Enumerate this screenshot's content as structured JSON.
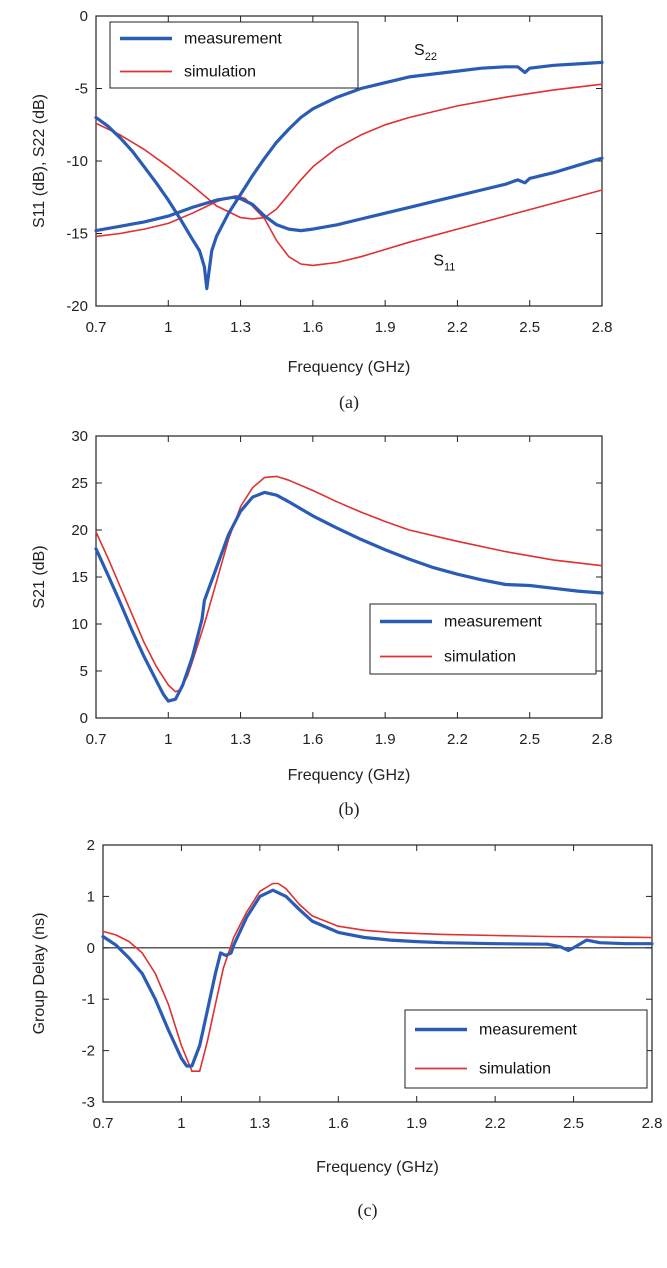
{
  "colors": {
    "measurement": "#2a5bb5",
    "simulation": "#e03030"
  },
  "chart_data": [
    {
      "type": "line",
      "caption": "(a)",
      "xlabel": "Frequency (GHz)",
      "ylabel": "S11 (dB), S22 (dB)",
      "xlim": [
        0.7,
        2.8
      ],
      "ylim": [
        -20,
        0
      ],
      "xticks": [
        "0.7",
        "1",
        "1.3",
        "1.6",
        "1.9",
        "2.2",
        "2.5",
        "2.8"
      ],
      "yticks": [
        "0",
        "-5",
        "-10",
        "-15",
        "-20"
      ],
      "legend": {
        "position": "top-left",
        "entries": [
          "measurement",
          "simulation"
        ]
      },
      "annotations": [
        {
          "text": "S",
          "sub": "22",
          "x": 2.02,
          "y": -2.7
        },
        {
          "text": "S",
          "sub": "11",
          "x": 2.1,
          "y": -17.2
        }
      ],
      "series": [
        {
          "name": "measurement",
          "curve": "S22",
          "color": "measurement",
          "x": [
            0.7,
            0.75,
            0.8,
            0.85,
            0.9,
            0.95,
            1.0,
            1.05,
            1.1,
            1.13,
            1.15,
            1.16,
            1.18,
            1.2,
            1.25,
            1.3,
            1.35,
            1.4,
            1.45,
            1.5,
            1.55,
            1.6,
            1.7,
            1.8,
            1.9,
            2.0,
            2.1,
            2.2,
            2.3,
            2.4,
            2.45,
            2.48,
            2.5,
            2.6,
            2.7,
            2.8
          ],
          "y": [
            -7.0,
            -7.6,
            -8.4,
            -9.3,
            -10.4,
            -11.5,
            -12.7,
            -14.0,
            -15.4,
            -16.2,
            -17.3,
            -18.8,
            -16.2,
            -15.2,
            -13.6,
            -12.3,
            -11.0,
            -9.8,
            -8.7,
            -7.8,
            -7.0,
            -6.4,
            -5.6,
            -5.0,
            -4.6,
            -4.2,
            -4.0,
            -3.8,
            -3.6,
            -3.5,
            -3.5,
            -3.9,
            -3.6,
            -3.4,
            -3.3,
            -3.2
          ]
        },
        {
          "name": "measurement",
          "curve": "S11",
          "color": "measurement",
          "x": [
            0.7,
            0.8,
            0.9,
            1.0,
            1.1,
            1.2,
            1.27,
            1.3,
            1.35,
            1.4,
            1.45,
            1.5,
            1.55,
            1.6,
            1.7,
            1.8,
            1.9,
            2.0,
            2.1,
            2.2,
            2.3,
            2.4,
            2.45,
            2.48,
            2.5,
            2.6,
            2.7,
            2.8
          ],
          "y": [
            -14.8,
            -14.5,
            -14.2,
            -13.8,
            -13.2,
            -12.7,
            -12.5,
            -12.6,
            -13.0,
            -13.8,
            -14.4,
            -14.7,
            -14.8,
            -14.7,
            -14.4,
            -14.0,
            -13.6,
            -13.2,
            -12.8,
            -12.4,
            -12.0,
            -11.6,
            -11.3,
            -11.5,
            -11.2,
            -10.8,
            -10.3,
            -9.8
          ]
        },
        {
          "name": "simulation",
          "curve": "S22",
          "color": "simulation",
          "x": [
            0.7,
            0.8,
            0.9,
            1.0,
            1.1,
            1.2,
            1.3,
            1.35,
            1.4,
            1.45,
            1.5,
            1.55,
            1.6,
            1.7,
            1.8,
            1.9,
            2.0,
            2.2,
            2.4,
            2.6,
            2.8
          ],
          "y": [
            -7.4,
            -8.2,
            -9.2,
            -10.4,
            -11.7,
            -13.1,
            -13.9,
            -14.0,
            -13.9,
            -13.3,
            -12.3,
            -11.3,
            -10.4,
            -9.1,
            -8.2,
            -7.5,
            -7.0,
            -6.2,
            -5.6,
            -5.1,
            -4.7
          ]
        },
        {
          "name": "simulation",
          "curve": "S11",
          "color": "simulation",
          "x": [
            0.7,
            0.8,
            0.9,
            1.0,
            1.1,
            1.2,
            1.28,
            1.32,
            1.4,
            1.45,
            1.5,
            1.55,
            1.6,
            1.7,
            1.8,
            1.9,
            2.0,
            2.2,
            2.4,
            2.6,
            2.8
          ],
          "y": [
            -15.2,
            -15.0,
            -14.7,
            -14.3,
            -13.6,
            -12.8,
            -12.4,
            -12.6,
            -14.0,
            -15.5,
            -16.6,
            -17.1,
            -17.2,
            -17.0,
            -16.6,
            -16.1,
            -15.6,
            -14.7,
            -13.8,
            -12.9,
            -12.0
          ]
        }
      ]
    },
    {
      "type": "line",
      "caption": "(b)",
      "xlabel": "Frequency (GHz)",
      "ylabel": "S21 (dB)",
      "xlim": [
        0.7,
        2.8
      ],
      "ylim": [
        0,
        30
      ],
      "xticks": [
        "0.7",
        "1",
        "1.3",
        "1.6",
        "1.9",
        "2.2",
        "2.5",
        "2.8"
      ],
      "yticks": [
        "0",
        "5",
        "10",
        "15",
        "20",
        "25",
        "30"
      ],
      "legend": {
        "position": "lower-right",
        "entries": [
          "measurement",
          "simulation"
        ]
      },
      "series": [
        {
          "name": "measurement",
          "color": "measurement",
          "x": [
            0.7,
            0.75,
            0.8,
            0.85,
            0.9,
            0.95,
            0.98,
            1.0,
            1.03,
            1.06,
            1.1,
            1.14,
            1.15,
            1.2,
            1.25,
            1.3,
            1.35,
            1.4,
            1.45,
            1.5,
            1.6,
            1.7,
            1.8,
            1.9,
            2.0,
            2.1,
            2.2,
            2.3,
            2.4,
            2.5,
            2.6,
            2.7,
            2.8
          ],
          "y": [
            18.0,
            15.2,
            12.3,
            9.3,
            6.5,
            4.0,
            2.5,
            1.8,
            2.0,
            3.5,
            6.5,
            10.5,
            12.5,
            16.0,
            19.5,
            22.0,
            23.5,
            24.0,
            23.7,
            23.0,
            21.5,
            20.2,
            19.0,
            17.9,
            16.9,
            16.0,
            15.3,
            14.7,
            14.2,
            14.1,
            13.8,
            13.5,
            13.3
          ]
        },
        {
          "name": "simulation",
          "color": "simulation",
          "x": [
            0.7,
            0.75,
            0.8,
            0.85,
            0.9,
            0.95,
            1.0,
            1.03,
            1.05,
            1.08,
            1.1,
            1.15,
            1.2,
            1.25,
            1.3,
            1.35,
            1.4,
            1.45,
            1.5,
            1.6,
            1.7,
            1.8,
            1.9,
            2.0,
            2.2,
            2.4,
            2.6,
            2.8
          ],
          "y": [
            19.8,
            17.0,
            14.0,
            11.0,
            8.0,
            5.5,
            3.5,
            2.8,
            3.0,
            4.5,
            6.0,
            10.0,
            14.5,
            19.0,
            22.5,
            24.5,
            25.6,
            25.7,
            25.3,
            24.2,
            23.0,
            21.9,
            20.9,
            20.0,
            18.8,
            17.7,
            16.8,
            16.2
          ]
        }
      ]
    },
    {
      "type": "line",
      "caption": "(c)",
      "xlabel": "Frequency (GHz)",
      "ylabel": "Group Delay (ns)",
      "xlim": [
        0.7,
        2.8
      ],
      "ylim": [
        -3,
        2
      ],
      "xticks": [
        "0.7",
        "1",
        "1.3",
        "1.6",
        "1.9",
        "2.2",
        "2.5",
        "2.8"
      ],
      "yticks": [
        "2",
        "1",
        "0",
        "-1",
        "-2",
        "-3"
      ],
      "reference_line": 0,
      "legend": {
        "position": "lower-right",
        "entries": [
          "measurement",
          "simulation"
        ]
      },
      "series": [
        {
          "name": "measurement",
          "color": "measurement",
          "x": [
            0.7,
            0.75,
            0.8,
            0.85,
            0.9,
            0.95,
            1.0,
            1.02,
            1.04,
            1.07,
            1.1,
            1.13,
            1.15,
            1.17,
            1.19,
            1.2,
            1.25,
            1.3,
            1.35,
            1.4,
            1.45,
            1.5,
            1.6,
            1.7,
            1.8,
            1.9,
            2.0,
            2.2,
            2.4,
            2.45,
            2.48,
            2.5,
            2.55,
            2.6,
            2.7,
            2.8
          ],
          "y": [
            0.22,
            0.05,
            -0.2,
            -0.5,
            -1.0,
            -1.6,
            -2.15,
            -2.3,
            -2.3,
            -1.9,
            -1.2,
            -0.5,
            -0.1,
            -0.15,
            -0.1,
            0.05,
            0.6,
            1.0,
            1.12,
            1.0,
            0.75,
            0.52,
            0.3,
            0.2,
            0.15,
            0.12,
            0.1,
            0.08,
            0.07,
            0.02,
            -0.05,
            0.0,
            0.15,
            0.1,
            0.08,
            0.08
          ]
        },
        {
          "name": "simulation",
          "color": "simulation",
          "x": [
            0.7,
            0.75,
            0.8,
            0.85,
            0.9,
            0.95,
            1.0,
            1.04,
            1.07,
            1.1,
            1.13,
            1.16,
            1.2,
            1.25,
            1.3,
            1.35,
            1.37,
            1.4,
            1.45,
            1.5,
            1.6,
            1.7,
            1.8,
            1.9,
            2.0,
            2.2,
            2.4,
            2.6,
            2.8
          ],
          "y": [
            0.32,
            0.25,
            0.12,
            -0.1,
            -0.5,
            -1.1,
            -1.9,
            -2.4,
            -2.4,
            -1.8,
            -1.1,
            -0.4,
            0.2,
            0.7,
            1.1,
            1.25,
            1.25,
            1.15,
            0.85,
            0.62,
            0.42,
            0.34,
            0.3,
            0.28,
            0.26,
            0.24,
            0.22,
            0.21,
            0.2
          ]
        }
      ]
    }
  ]
}
